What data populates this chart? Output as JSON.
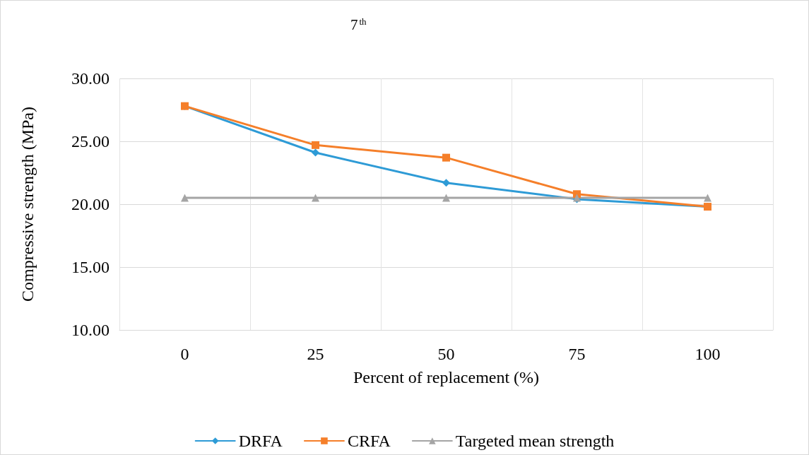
{
  "chart_data": {
    "type": "line",
    "title": "7$^{th}$",
    "xlabel": "Percent of replacement (%)",
    "ylabel": "Compressive strength (MPa)",
    "categories": [
      "0",
      "25",
      "50",
      "75",
      "100"
    ],
    "series": [
      {
        "name": "DRFA",
        "color": "#2e9bd6",
        "marker": "diamond",
        "values": [
          27.8,
          24.1,
          21.7,
          20.4,
          19.8
        ]
      },
      {
        "name": "CRFA",
        "color": "#f57f2a",
        "marker": "square",
        "values": [
          27.8,
          24.7,
          23.7,
          20.8,
          19.8
        ]
      },
      {
        "name": "Targeted mean strength",
        "color": "#a5a5a5",
        "marker": "triangle",
        "values": [
          20.5,
          20.5,
          20.5,
          20.5,
          20.5
        ]
      }
    ],
    "ylim": [
      10,
      30
    ],
    "yticks": [
      {
        "value": 10,
        "label": "10.00"
      },
      {
        "value": 15,
        "label": "15.00"
      },
      {
        "value": 20,
        "label": "20.00"
      },
      {
        "value": 25,
        "label": "25.00"
      },
      {
        "value": 30,
        "label": "30.00"
      }
    ],
    "grid": true,
    "legend": "bottom",
    "line_style": "solid"
  }
}
